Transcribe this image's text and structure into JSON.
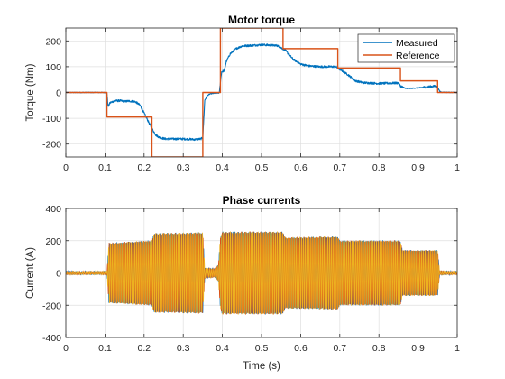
{
  "chart_data": [
    {
      "type": "line",
      "title": "Motor torque",
      "xlabel": "",
      "ylabel": "Torque (Nm)",
      "xlim": [
        0,
        1
      ],
      "ylim": [
        -250,
        250
      ],
      "x_ticks": [
        "0",
        "0.1",
        "0.2",
        "0.3",
        "0.4",
        "0.5",
        "0.6",
        "0.7",
        "0.8",
        "0.9",
        "1"
      ],
      "y_ticks": [
        "-200",
        "-100",
        "0",
        "100",
        "200"
      ],
      "grid": true,
      "legend_position": "top-right",
      "series": [
        {
          "name": "Measured",
          "color": "#0072BD",
          "noisy": true,
          "points": [
            [
              0,
              0
            ],
            [
              0.1,
              0
            ],
            [
              0.105,
              -3
            ],
            [
              0.108,
              -55
            ],
            [
              0.113,
              -40
            ],
            [
              0.125,
              -32
            ],
            [
              0.14,
              -32
            ],
            [
              0.15,
              -35
            ],
            [
              0.16,
              -33
            ],
            [
              0.175,
              -35
            ],
            [
              0.18,
              -38
            ],
            [
              0.19,
              -50
            ],
            [
              0.2,
              -80
            ],
            [
              0.21,
              -110
            ],
            [
              0.22,
              -140
            ],
            [
              0.23,
              -165
            ],
            [
              0.24,
              -175
            ],
            [
              0.255,
              -180
            ],
            [
              0.3,
              -180
            ],
            [
              0.33,
              -182
            ],
            [
              0.345,
              -180
            ],
            [
              0.35,
              -175
            ],
            [
              0.355,
              -30
            ],
            [
              0.36,
              -15
            ],
            [
              0.365,
              -8
            ],
            [
              0.37,
              -5
            ],
            [
              0.38,
              -3
            ],
            [
              0.392,
              -2
            ],
            [
              0.398,
              80
            ],
            [
              0.405,
              85
            ],
            [
              0.41,
              120
            ],
            [
              0.42,
              150
            ],
            [
              0.435,
              170
            ],
            [
              0.45,
              180
            ],
            [
              0.5,
              185
            ],
            [
              0.54,
              182
            ],
            [
              0.56,
              165
            ],
            [
              0.58,
              130
            ],
            [
              0.6,
              110
            ],
            [
              0.62,
              103
            ],
            [
              0.65,
              100
            ],
            [
              0.69,
              100
            ],
            [
              0.695,
              95
            ],
            [
              0.72,
              70
            ],
            [
              0.74,
              45
            ],
            [
              0.76,
              38
            ],
            [
              0.8,
              35
            ],
            [
              0.85,
              37
            ],
            [
              0.855,
              25
            ],
            [
              0.87,
              15
            ],
            [
              0.9,
              18
            ],
            [
              0.945,
              25
            ],
            [
              0.95,
              20
            ],
            [
              0.955,
              5
            ],
            [
              0.96,
              1
            ],
            [
              1,
              0
            ]
          ]
        },
        {
          "name": "Reference",
          "color": "#D95319",
          "noisy": false,
          "points": [
            [
              0,
              0
            ],
            [
              0.105,
              0
            ],
            [
              0.105,
              -95
            ],
            [
              0.22,
              -95
            ],
            [
              0.22,
              -250
            ],
            [
              0.35,
              -250
            ],
            [
              0.35,
              0
            ],
            [
              0.395,
              0
            ],
            [
              0.395,
              250
            ],
            [
              0.555,
              250
            ],
            [
              0.555,
              170
            ],
            [
              0.695,
              170
            ],
            [
              0.695,
              95
            ],
            [
              0.855,
              95
            ],
            [
              0.855,
              45
            ],
            [
              0.95,
              45
            ],
            [
              0.95,
              0
            ],
            [
              1,
              0
            ]
          ]
        }
      ]
    },
    {
      "type": "line",
      "title": "Phase currents",
      "xlabel": "Time (s)",
      "ylabel": "Current (A)",
      "xlim": [
        0,
        1
      ],
      "ylim": [
        -400,
        400
      ],
      "x_ticks": [
        "0",
        "0.1",
        "0.2",
        "0.3",
        "0.4",
        "0.5",
        "0.6",
        "0.7",
        "0.8",
        "0.9",
        "1"
      ],
      "y_ticks": [
        "-400",
        "-200",
        "0",
        "200",
        "400"
      ],
      "grid": true,
      "oscillation_frequency_hz": 225,
      "series": [
        {
          "name": "",
          "color": "#0072BD",
          "phase_deg": 0,
          "amplitude_envelope": [
            [
              0,
              8
            ],
            [
              0.105,
              8
            ],
            [
              0.11,
              185
            ],
            [
              0.22,
              200
            ],
            [
              0.225,
              245
            ],
            [
              0.35,
              250
            ],
            [
              0.355,
              30
            ],
            [
              0.38,
              25
            ],
            [
              0.39,
              50
            ],
            [
              0.395,
              225
            ],
            [
              0.4,
              255
            ],
            [
              0.555,
              255
            ],
            [
              0.56,
              220
            ],
            [
              0.695,
              225
            ],
            [
              0.7,
              200
            ],
            [
              0.855,
              200
            ],
            [
              0.86,
              140
            ],
            [
              0.95,
              140
            ],
            [
              0.955,
              10
            ],
            [
              1,
              8
            ]
          ]
        },
        {
          "name": "",
          "color": "#D95319",
          "phase_deg": 120,
          "amplitude_envelope": [
            [
              0,
              8
            ],
            [
              0.105,
              8
            ],
            [
              0.11,
              185
            ],
            [
              0.22,
              200
            ],
            [
              0.225,
              245
            ],
            [
              0.35,
              250
            ],
            [
              0.355,
              30
            ],
            [
              0.38,
              25
            ],
            [
              0.39,
              50
            ],
            [
              0.395,
              225
            ],
            [
              0.4,
              255
            ],
            [
              0.555,
              255
            ],
            [
              0.56,
              220
            ],
            [
              0.695,
              225
            ],
            [
              0.7,
              200
            ],
            [
              0.855,
              200
            ],
            [
              0.86,
              140
            ],
            [
              0.95,
              140
            ],
            [
              0.955,
              10
            ],
            [
              1,
              8
            ]
          ]
        },
        {
          "name": "",
          "color": "#EDB120",
          "phase_deg": 240,
          "amplitude_envelope": [
            [
              0,
              8
            ],
            [
              0.105,
              8
            ],
            [
              0.11,
              185
            ],
            [
              0.22,
              200
            ],
            [
              0.225,
              245
            ],
            [
              0.35,
              250
            ],
            [
              0.355,
              30
            ],
            [
              0.38,
              25
            ],
            [
              0.39,
              50
            ],
            [
              0.395,
              225
            ],
            [
              0.4,
              255
            ],
            [
              0.555,
              255
            ],
            [
              0.56,
              220
            ],
            [
              0.695,
              225
            ],
            [
              0.7,
              200
            ],
            [
              0.855,
              200
            ],
            [
              0.86,
              140
            ],
            [
              0.95,
              140
            ],
            [
              0.955,
              10
            ],
            [
              1,
              8
            ]
          ]
        }
      ]
    }
  ]
}
